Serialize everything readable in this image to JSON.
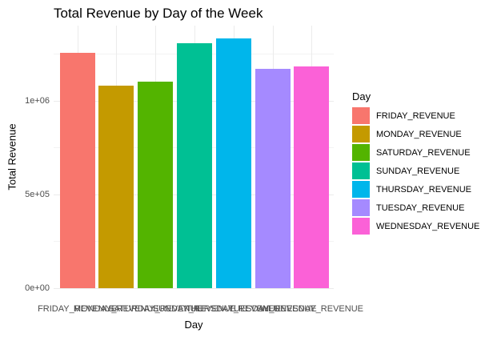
{
  "chart_data": {
    "type": "bar",
    "title": "Total Revenue by Day of the Week",
    "xlabel": "Day",
    "ylabel": "Total Revenue",
    "categories": [
      "FRIDAY_REVENUE",
      "MONDAY_REVENUE",
      "SATURDAY_REVENUE",
      "SUNDAY_REVENUE",
      "THURSDAY_REVENUE",
      "TUESDAY_REVENUE",
      "WEDNESDAY_REVENUE"
    ],
    "values": [
      1256000,
      1081000,
      1103000,
      1308000,
      1333000,
      1171000,
      1184000
    ],
    "colors": [
      "#F8766D",
      "#C49A00",
      "#53B400",
      "#00C094",
      "#00B6EB",
      "#A58AFF",
      "#FB61D7"
    ],
    "ylim": [
      0,
      1401700
    ],
    "yticks": [
      {
        "value": 0,
        "label": "0e+00"
      },
      {
        "value": 500000,
        "label": "5e+05"
      },
      {
        "value": 1000000,
        "label": "1e+06"
      }
    ],
    "grid": true,
    "legend": {
      "title": "Day",
      "position": "right"
    }
  }
}
